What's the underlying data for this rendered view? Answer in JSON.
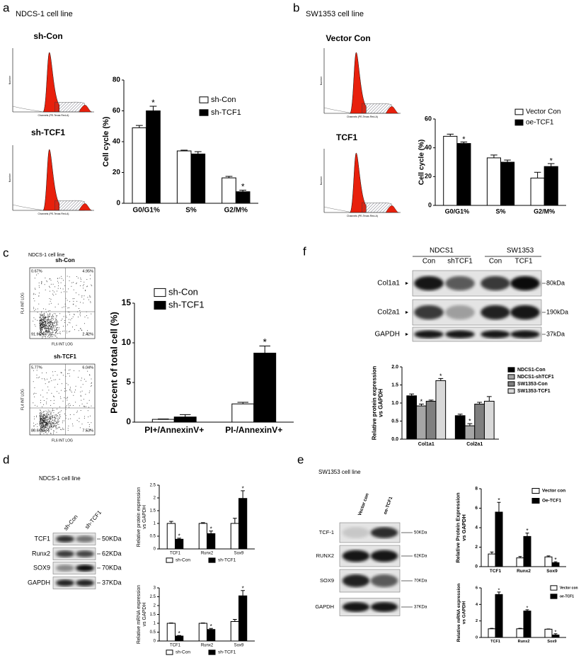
{
  "panels": {
    "a": {
      "label": "a",
      "title": "NDCS-1 cell line",
      "histograms": [
        "sh-Con",
        "sh-TCF1"
      ],
      "hist_xlabel": "Channels (PE-Texas Red-A)",
      "hist_ylabel": "Number"
    },
    "b": {
      "label": "b",
      "title": "SW1353 cell line",
      "histograms": [
        "Vector Con",
        "TCF1"
      ],
      "hist_xlabel": "Channels (PE-Texas Red-A)",
      "hist_ylabel": "Number"
    },
    "c": {
      "label": "c",
      "title": "NDCS-1 cell line",
      "dotplots": [
        {
          "title": "sh-Con",
          "quadrants": [
            "0.67%",
            "4.95%",
            "91.96%",
            "2.42%"
          ]
        },
        {
          "title": "sh-TCF1",
          "quadrants": [
            "5.77%",
            "6.04%",
            "80.66%",
            "7.53%"
          ]
        }
      ],
      "dot_xlabel": "FL6 INT LOG",
      "dot_ylabel": "FL4 INT LOG"
    },
    "d": {
      "label": "d",
      "title": "NDCS-1 cell line",
      "lanes": [
        "sh-Con",
        "sh-TCF1"
      ],
      "rows": [
        {
          "name": "TCF1",
          "size": "50KDa"
        },
        {
          "name": "Runx2",
          "size": "62KDa"
        },
        {
          "name": "SOX9",
          "size": "70KDa"
        },
        {
          "name": "GAPDH",
          "size": "37KDa"
        }
      ]
    },
    "e": {
      "label": "e",
      "title": "SW1353 cell line",
      "lanes": [
        "Vector con",
        "oe-TCF1"
      ],
      "rows": [
        {
          "name": "TCF-1",
          "size": "50KDa"
        },
        {
          "name": "RUNX2",
          "size": "62KDa"
        },
        {
          "name": "SOX9",
          "size": "70KDa"
        },
        {
          "name": "GAPDH",
          "size": "37KDa"
        }
      ]
    },
    "f": {
      "label": "f",
      "groups": [
        {
          "name": "NDCS1",
          "lanes": [
            "Con",
            "shTCF1"
          ]
        },
        {
          "name": "SW1353",
          "lanes": [
            "Con",
            "TCF1"
          ]
        }
      ],
      "rows": [
        {
          "name": "Col1a1",
          "size": "80kDa"
        },
        {
          "name": "Col2a1",
          "size": "190kDa"
        },
        {
          "name": "GAPDH",
          "size": "37kDa"
        }
      ]
    }
  },
  "chart_data": [
    {
      "type": "bar",
      "ylabel": [
        "Cell cycle (%)"
      ],
      "categories": [
        "G0/G1%",
        "S%",
        "G2/M%"
      ],
      "significance_mark": "*",
      "legend": "upper-right",
      "series": [
        {
          "name": "sh-Con",
          "color": "#ffffff",
          "values": [
            49,
            34,
            16.5
          ],
          "errors": [
            1.5,
            0.5,
            1
          ],
          "significant": [
            false,
            false,
            false
          ]
        },
        {
          "name": "sh-TCF1",
          "color": "#000000",
          "values": [
            60,
            32,
            7.5
          ],
          "errors": [
            3,
            1.5,
            1
          ],
          "significant": [
            true,
            false,
            true
          ]
        }
      ],
      "ylim": [
        0,
        80
      ],
      "yticks": [
        0,
        20,
        40,
        60,
        80
      ]
    },
    {
      "type": "bar",
      "ylabel": [
        "Cell cycle (%)"
      ],
      "categories": [
        "G0/G1%",
        "S%",
        "G2/M%"
      ],
      "significance_mark": "*",
      "legend": "upper-right",
      "series": [
        {
          "name": "Vector Con",
          "color": "#ffffff",
          "values": [
            48,
            33,
            19
          ],
          "errors": [
            1.5,
            2,
            4
          ],
          "significant": [
            false,
            false,
            false
          ]
        },
        {
          "name": "oe-TCF1",
          "color": "#000000",
          "values": [
            43,
            30,
            27
          ],
          "errors": [
            1,
            1.5,
            2
          ],
          "significant": [
            true,
            false,
            true
          ]
        }
      ],
      "ylim": [
        0,
        60
      ],
      "yticks": [
        0,
        20,
        40,
        60
      ]
    },
    {
      "type": "bar",
      "ylabel": [
        "Percent of total cell (%)"
      ],
      "categories": [
        "PI+/AnnexinV+",
        "PI-/AnnexinV+"
      ],
      "significance_mark": "*",
      "legend": "upper-left",
      "series": [
        {
          "name": "sh-Con",
          "color": "#ffffff",
          "values": [
            0.35,
            2.3
          ],
          "errors": [
            0.05,
            0.2
          ],
          "significant": [
            false,
            false
          ]
        },
        {
          "name": "sh-TCF1",
          "color": "#000000",
          "values": [
            0.65,
            8.7
          ],
          "errors": [
            0.3,
            0.9
          ],
          "significant": [
            false,
            true
          ]
        }
      ],
      "ylim": [
        0,
        15
      ],
      "yticks": [
        0,
        5,
        10,
        15
      ]
    },
    {
      "type": "bar",
      "ylabel": [
        "Relative protein expression",
        "vs GAPDH"
      ],
      "categories": [
        "Col1a1",
        "Col2a1"
      ],
      "significance_mark": "*",
      "legend": "right",
      "series": [
        {
          "name": "NDCS1-Con",
          "color": "#000000",
          "values": [
            1.2,
            0.65
          ],
          "errors": [
            0.05,
            0.04
          ],
          "significant": [
            false,
            false
          ]
        },
        {
          "name": "NDCS1-shTCF1",
          "color": "#a6a6a6",
          "values": [
            0.92,
            0.37
          ],
          "errors": [
            0.05,
            0.06
          ],
          "significant": [
            true,
            true
          ]
        },
        {
          "name": "SW1353-Con",
          "color": "#7f7f7f",
          "values": [
            1.05,
            0.97
          ],
          "errors": [
            0.03,
            0.05
          ],
          "significant": [
            false,
            false
          ]
        },
        {
          "name": "SW1353-TCF1",
          "color": "#d9d9d9",
          "values": [
            1.62,
            1.05
          ],
          "errors": [
            0.06,
            0.13
          ],
          "significant": [
            true,
            false
          ]
        }
      ],
      "ylim": [
        0,
        2
      ],
      "yticks": [
        {
          "value": 0,
          "label": "0.0"
        },
        0.5,
        {
          "value": 1,
          "label": "1.0"
        },
        1.5,
        {
          "value": 2,
          "label": "2.0"
        }
      ]
    },
    {
      "type": "bar",
      "ylabel": [
        "Relative protein expression",
        "vs GAPDH"
      ],
      "categories": [
        "TCF1",
        "Runx2",
        "Sox9"
      ],
      "significance_mark": "*",
      "legend": "bottom",
      "series": [
        {
          "name": "sh-Con",
          "color": "#ffffff",
          "values": [
            1,
            1,
            1
          ],
          "errors": [
            0.08,
            0.03,
            0.2
          ],
          "significant": [
            false,
            false,
            false
          ]
        },
        {
          "name": "sh-TCF1",
          "color": "#000000",
          "values": [
            0.38,
            0.6,
            1.98
          ],
          "errors": [
            0.04,
            0.1,
            0.3
          ],
          "significant": [
            true,
            true,
            true
          ]
        }
      ],
      "ylim": [
        0,
        2.5
      ],
      "yticks": [
        0,
        0.5,
        1,
        1.5,
        2,
        2.5
      ]
    },
    {
      "type": "bar",
      "ylabel": [
        "Relative mRNA expression",
        "vs GAPDH"
      ],
      "categories": [
        "TCF1",
        "Runx2",
        "Sox9"
      ],
      "significance_mark": "*",
      "legend": "bottom",
      "series": [
        {
          "name": "sh-Con",
          "color": "#ffffff",
          "values": [
            1,
            1,
            1.1
          ],
          "errors": [
            0.02,
            0.02,
            0.12
          ],
          "significant": [
            false,
            false,
            false
          ]
        },
        {
          "name": "sh-TCF1",
          "color": "#000000",
          "values": [
            0.28,
            0.65,
            2.55
          ],
          "errors": [
            0.03,
            0.06,
            0.3
          ],
          "significant": [
            true,
            true,
            true
          ]
        }
      ],
      "ylim": [
        0,
        3
      ],
      "yticks": [
        0,
        0.5,
        1,
        1.5,
        2,
        2.5,
        3
      ]
    },
    {
      "type": "bar",
      "ylabel": [
        "Relative Protein Expression",
        "vs GAPDH"
      ],
      "categories": [
        "TCF1",
        "Runx2",
        "Sox9"
      ],
      "significance_mark": "*",
      "legend": "upper-right",
      "series": [
        {
          "name": "Vector con",
          "color": "#ffffff",
          "values": [
            1.3,
            0.9,
            1
          ],
          "errors": [
            0.2,
            0.15,
            0.1
          ],
          "significant": [
            false,
            false,
            false
          ]
        },
        {
          "name": "Oe-TCF1",
          "color": "#000000",
          "values": [
            5.6,
            3.1,
            0.4
          ],
          "errors": [
            1,
            0.35,
            0.1
          ],
          "significant": [
            true,
            true,
            true
          ]
        }
      ],
      "ylim": [
        0,
        8
      ],
      "yticks": [
        0,
        2,
        4,
        6,
        8
      ]
    },
    {
      "type": "bar",
      "ylabel": [
        "Relative mRNA expression",
        "vs GAPDH"
      ],
      "categories": [
        "TCF1",
        "Runx2",
        "Sox9"
      ],
      "significance_mark": "*",
      "legend": "upper-right",
      "series": [
        {
          "name": "Vector con",
          "color": "#ffffff",
          "values": [
            1.05,
            1.05,
            1
          ],
          "errors": [
            0.05,
            0.05,
            0.03
          ],
          "significant": [
            false,
            false,
            false
          ]
        },
        {
          "name": "oe-TCF1",
          "color": "#000000",
          "values": [
            5.2,
            3.2,
            0.3
          ],
          "errors": [
            0.3,
            0.15,
            0.15
          ],
          "significant": [
            true,
            true,
            true
          ]
        }
      ],
      "ylim": [
        0,
        6
      ],
      "yticks": [
        0,
        2,
        4,
        6
      ]
    }
  ]
}
